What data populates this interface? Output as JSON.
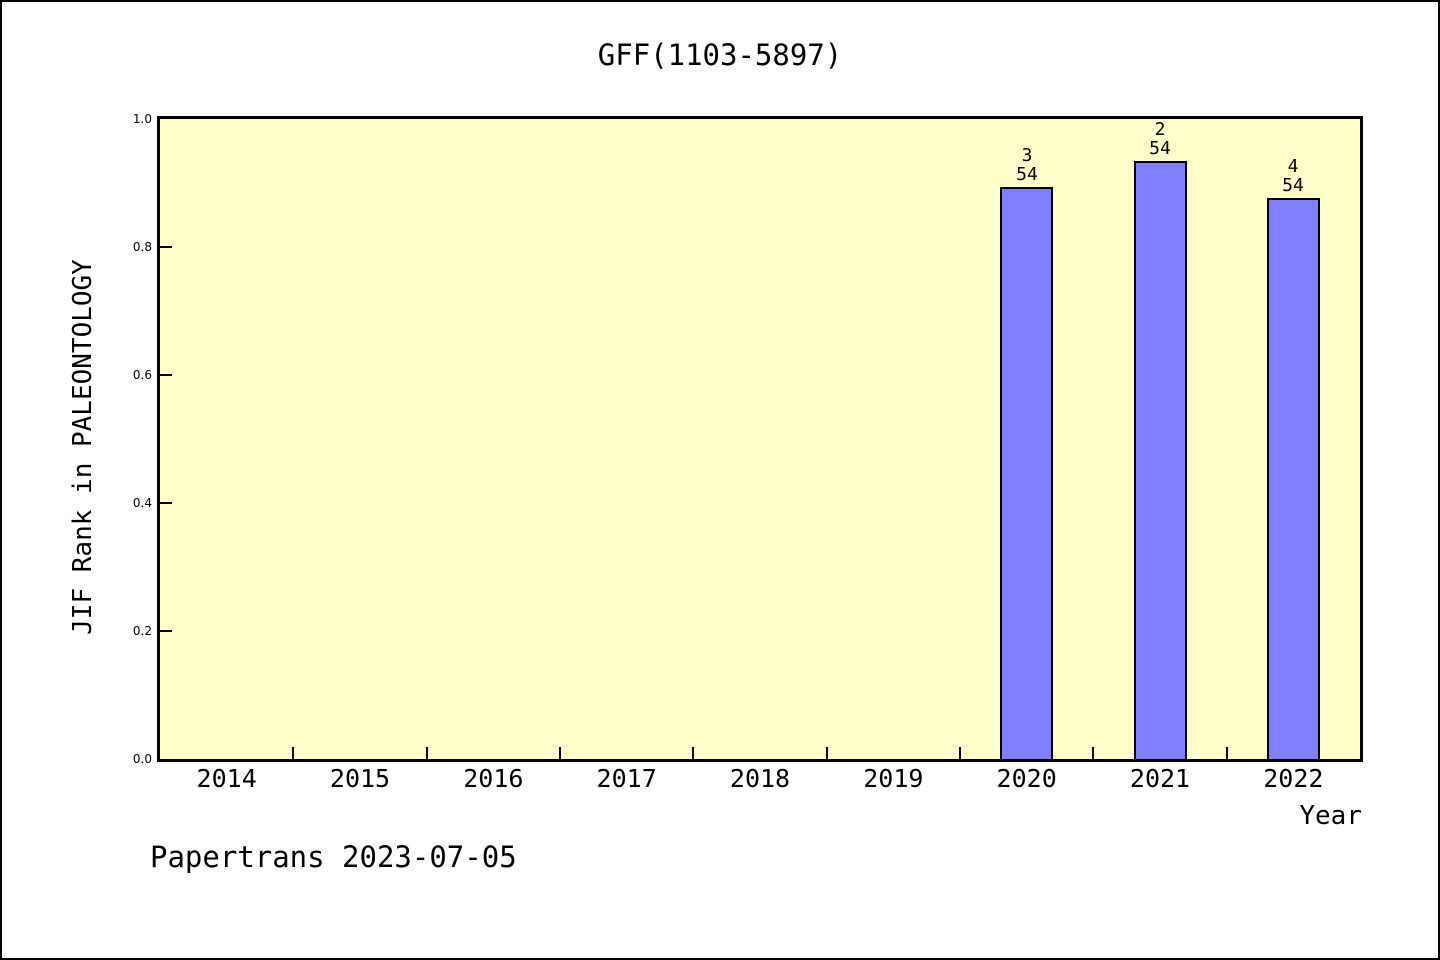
{
  "footer": "Papertrans 2023-07-05",
  "chart_data": {
    "type": "bar",
    "title": "GFF(1103-5897)",
    "xlabel": "Year",
    "ylabel": "JIF Rank in PALEONTOLOGY",
    "categories": [
      "2014",
      "2015",
      "2016",
      "2017",
      "2018",
      "2019",
      "2020",
      "2021",
      "2022"
    ],
    "values": [
      null,
      null,
      null,
      null,
      null,
      null,
      0.893,
      0.935,
      0.876
    ],
    "annotations": [
      {
        "category": "2020",
        "rank": "3",
        "total": "54"
      },
      {
        "category": "2021",
        "rank": "2",
        "total": "54"
      },
      {
        "category": "2022",
        "rank": "4",
        "total": "54"
      }
    ],
    "ylim": [
      0.0,
      1.0
    ],
    "yticks": [
      "0.0",
      "0.2",
      "0.4",
      "0.6",
      "0.8",
      "1.0"
    ],
    "grid": false,
    "legend": "none",
    "colors": {
      "bar_fill": "#7f7fff",
      "bar_border": "#000000",
      "plot_bg": "#ffffcc",
      "frame": "#000000",
      "text": "#000000",
      "page_bg": "#ffffff"
    }
  }
}
